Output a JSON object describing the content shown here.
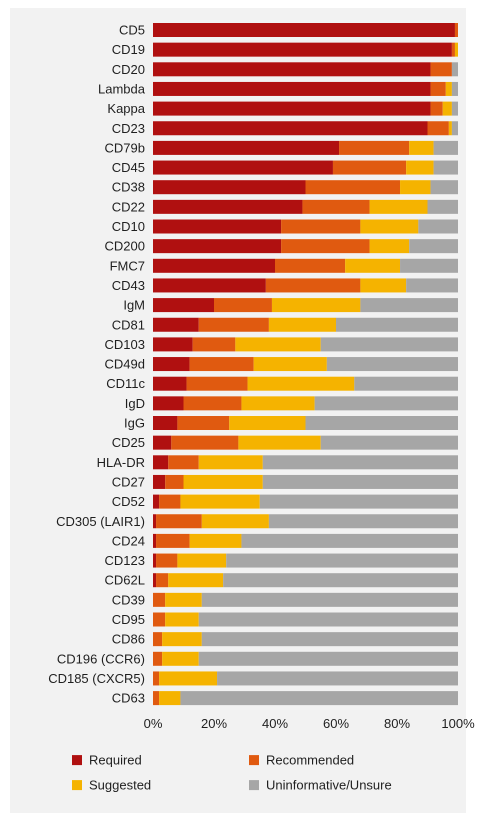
{
  "chart_data": {
    "type": "bar",
    "orientation": "horizontal",
    "stacked": true,
    "normalized": true,
    "categories": [
      "CD5",
      "CD19",
      "CD20",
      "Lambda",
      "Kappa",
      "CD23",
      "CD79b",
      "CD45",
      "CD38",
      "CD22",
      "CD10",
      "CD200",
      "FMC7",
      "CD43",
      "IgM",
      "CD81",
      "CD103",
      "CD49d",
      "CD11c",
      "IgD",
      "IgG",
      "CD25",
      "HLA-DR",
      "CD27",
      "CD52",
      "CD305 (LAIR1)",
      "CD24",
      "CD123",
      "CD62L",
      "CD39",
      "CD95",
      "CD86",
      "CD196 (CCR6)",
      "CD185 (CXCR5)",
      "CD63"
    ],
    "series": [
      {
        "name": "Required",
        "color": "#b01010",
        "values": [
          99,
          98,
          91,
          91,
          91,
          90,
          61,
          59,
          50,
          49,
          42,
          42,
          40,
          37,
          20,
          15,
          13,
          12,
          11,
          10,
          8,
          6,
          5,
          4,
          2,
          1,
          1,
          1,
          1,
          0,
          0,
          0,
          0,
          0,
          0
        ]
      },
      {
        "name": "Recommended",
        "color": "#e05a10",
        "values": [
          1,
          1,
          7,
          5,
          4,
          7,
          23,
          24,
          31,
          22,
          26,
          29,
          23,
          31,
          19,
          23,
          14,
          21,
          20,
          19,
          17,
          22,
          10,
          6,
          7,
          15,
          11,
          7,
          4,
          4,
          4,
          3,
          3,
          2,
          2
        ]
      },
      {
        "name": "Suggested",
        "color": "#f5b300",
        "values": [
          0,
          1,
          0,
          2,
          3,
          1,
          8,
          9,
          10,
          19,
          19,
          13,
          18,
          15,
          29,
          22,
          28,
          24,
          35,
          24,
          25,
          27,
          21,
          26,
          26,
          22,
          17,
          16,
          18,
          12,
          11,
          13,
          12,
          19,
          7
        ]
      },
      {
        "name": "Uninformative/Unsure",
        "color": "#a6a6a6",
        "values": [
          0,
          0,
          2,
          2,
          2,
          2,
          8,
          8,
          9,
          10,
          13,
          16,
          19,
          17,
          32,
          40,
          45,
          43,
          34,
          47,
          50,
          45,
          64,
          64,
          65,
          62,
          71,
          76,
          77,
          84,
          85,
          84,
          85,
          79,
          91
        ]
      }
    ],
    "xlim": [
      0,
      100
    ],
    "x_ticks": [
      "0%",
      "20%",
      "40%",
      "60%",
      "80%",
      "100%"
    ],
    "grid": false,
    "legend_position": "bottom"
  }
}
